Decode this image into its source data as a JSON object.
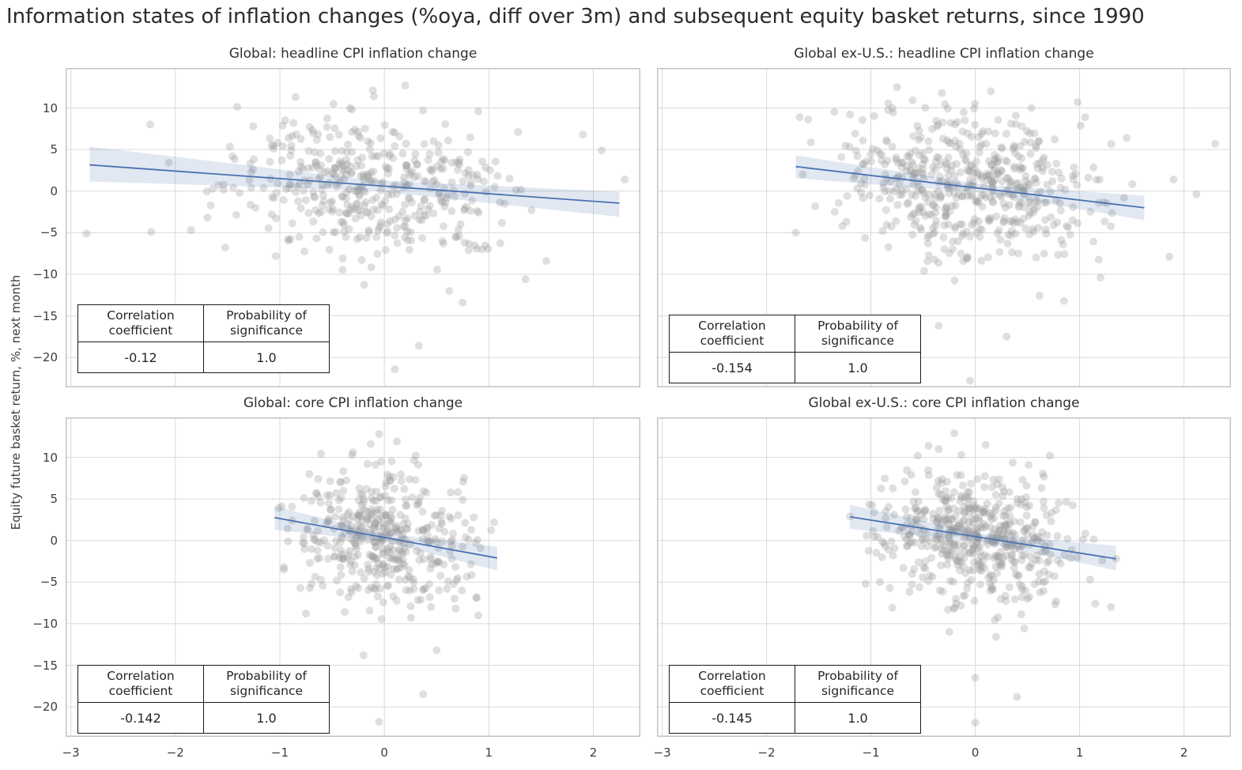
{
  "title": "Information states of inflation changes (%oya, diff over 3m) and subsequent equity basket returns, since 1990",
  "chart_data": {
    "type": "scatter",
    "title": "Information states of inflation changes (%oya, diff over 3m) and subsequent equity basket returns, since 1990",
    "ylabel": "Equity future basket return, %, next month",
    "xlabel": "",
    "grid": true,
    "xlim": [
      -3.05,
      2.45
    ],
    "ylim": [
      -23.6,
      14.8
    ],
    "x_tick_values": [
      -3,
      -2,
      -1,
      0,
      1,
      2
    ],
    "x_tick_labels": [
      "−3",
      "−2",
      "−1",
      "0",
      "1",
      "2"
    ],
    "y_tick_values": [
      10,
      5,
      0,
      -5,
      -10,
      -15,
      -20
    ],
    "y_tick_labels": [
      "10",
      "5",
      "0",
      "−5",
      "−10",
      "−15",
      "−20"
    ],
    "table_headers": [
      "Correlation coefficient",
      "Probability of significance"
    ],
    "style": {
      "line_color": "#4c72b0",
      "band_color": "#4c72b0",
      "band_opacity": 0.16,
      "point_color": "#9a9a9a",
      "point_opacity": 0.32,
      "point_radius": 5,
      "grid_color": "#d9d9d9",
      "frame_color": "#c3c3c3",
      "background": "#ffffff"
    },
    "panels": [
      {
        "id": "global-headline",
        "title": "Global: headline CPI inflation change",
        "correlation": "-0.12",
        "probability": "1.0",
        "regression": {
          "x1": -2.82,
          "y1": 3.15,
          "x2": 2.25,
          "y2": -1.45
        },
        "ci_band": [
          [
            -2.82,
            5.35,
            1.15
          ],
          [
            -0.15,
            1.35,
            0.1
          ],
          [
            2.25,
            -0.1,
            -3.1
          ]
        ],
        "scatter": {
          "seed": 101,
          "n": 430,
          "x_mean": -0.08,
          "x_std": 0.68,
          "x_min": -2.35,
          "x_max": 2.05,
          "intercept": 0.55,
          "slope": -0.9,
          "noise_std": 3.9,
          "y_min": -13.5,
          "y_max": 12.5
        },
        "outliers": [
          [
            -2.85,
            -5.1
          ],
          [
            -2.24,
            8.0
          ],
          [
            -2.23,
            -4.9
          ],
          [
            2.3,
            1.4
          ],
          [
            1.9,
            6.8
          ],
          [
            2.08,
            4.9
          ],
          [
            0.1,
            -21.4
          ],
          [
            0.33,
            -18.6
          ],
          [
            0.75,
            -13.4
          ],
          [
            1.35,
            -10.6
          ],
          [
            0.62,
            -12.0
          ],
          [
            0.2,
            12.7
          ],
          [
            -0.1,
            11.4
          ],
          [
            -0.85,
            11.3
          ],
          [
            0.37,
            9.7
          ],
          [
            0.9,
            9.6
          ],
          [
            1.28,
            7.1
          ],
          [
            1.55,
            -8.4
          ],
          [
            -1.85,
            -4.7
          ]
        ]
      },
      {
        "id": "global-ex-us-headline",
        "title": "Global ex-U.S.: headline CPI inflation change",
        "correlation": "-0.154",
        "probability": "1.0",
        "regression": {
          "x1": -1.72,
          "y1": 2.95,
          "x2": 1.62,
          "y2": -2.0
        },
        "ci_band": [
          [
            -1.72,
            4.3,
            1.55
          ],
          [
            0.1,
            0.75,
            -0.25
          ],
          [
            1.62,
            -0.55,
            -3.5
          ]
        ],
        "scatter": {
          "seed": 202,
          "n": 530,
          "x_mean": 0.0,
          "x_std": 0.6,
          "x_min": -1.7,
          "x_max": 1.6,
          "intercept": 0.5,
          "slope": -1.2,
          "noise_std": 4.2,
          "y_min": -13.5,
          "y_max": 12.5
        },
        "outliers": [
          [
            2.3,
            5.7
          ],
          [
            1.9,
            1.4
          ],
          [
            2.12,
            -0.4
          ],
          [
            1.86,
            -7.9
          ],
          [
            -1.72,
            -5.0
          ],
          [
            -0.05,
            -22.8
          ],
          [
            0.3,
            -17.5
          ],
          [
            -0.35,
            -16.2
          ],
          [
            0.85,
            -13.2
          ],
          [
            1.2,
            -10.4
          ],
          [
            -0.75,
            12.5
          ],
          [
            -0.32,
            11.8
          ],
          [
            -0.6,
            10.9
          ],
          [
            0.15,
            12.0
          ],
          [
            1.45,
            6.4
          ],
          [
            -1.6,
            8.6
          ],
          [
            -1.2,
            9.2
          ]
        ]
      },
      {
        "id": "global-core",
        "title": "Global: core CPI inflation change",
        "correlation": "-0.142",
        "probability": "1.0",
        "regression": {
          "x1": -1.05,
          "y1": 2.75,
          "x2": 1.08,
          "y2": -2.1
        },
        "ci_band": [
          [
            -1.05,
            4.1,
            1.3
          ],
          [
            0.0,
            0.85,
            -0.15
          ],
          [
            1.08,
            -0.75,
            -3.6
          ]
        ],
        "scatter": {
          "seed": 303,
          "n": 430,
          "x_mean": -0.02,
          "x_std": 0.38,
          "x_min": -1.05,
          "x_max": 1.05,
          "intercept": 0.4,
          "slope": -1.5,
          "noise_std": 4.0,
          "y_min": -13.5,
          "y_max": 12.5
        },
        "outliers": [
          [
            -0.05,
            12.8
          ],
          [
            0.12,
            11.9
          ],
          [
            -0.3,
            10.6
          ],
          [
            0.3,
            10.2
          ],
          [
            -0.05,
            -21.8
          ],
          [
            0.37,
            -18.5
          ],
          [
            -0.2,
            -13.8
          ],
          [
            0.5,
            -13.2
          ],
          [
            0.9,
            -9.0
          ],
          [
            -0.75,
            -8.8
          ],
          [
            0.75,
            4.9
          ],
          [
            1.05,
            2.2
          ]
        ]
      },
      {
        "id": "global-ex-us-core",
        "title": "Global ex-U.S.: core CPI inflation change",
        "correlation": "-0.145",
        "probability": "1.0",
        "regression": {
          "x1": -1.2,
          "y1": 2.85,
          "x2": 1.35,
          "y2": -2.2
        },
        "ci_band": [
          [
            -1.2,
            4.3,
            1.4
          ],
          [
            0.05,
            0.85,
            -0.15
          ],
          [
            1.35,
            -0.65,
            -3.6
          ]
        ],
        "scatter": {
          "seed": 404,
          "n": 530,
          "x_mean": 0.0,
          "x_std": 0.45,
          "x_min": -1.22,
          "x_max": 1.33,
          "intercept": 0.4,
          "slope": -1.6,
          "noise_std": 4.1,
          "y_min": -13.5,
          "y_max": 12.5
        },
        "outliers": [
          [
            -0.2,
            12.9
          ],
          [
            0.1,
            11.5
          ],
          [
            -0.55,
            10.2
          ],
          [
            -0.35,
            11.0
          ],
          [
            0.0,
            -21.9
          ],
          [
            0.4,
            -18.8
          ],
          [
            0.0,
            -16.5
          ],
          [
            1.3,
            -8.0
          ],
          [
            1.15,
            -7.6
          ],
          [
            -1.2,
            2.9
          ],
          [
            -1.05,
            -5.2
          ],
          [
            1.35,
            -2.2
          ]
        ]
      }
    ]
  }
}
